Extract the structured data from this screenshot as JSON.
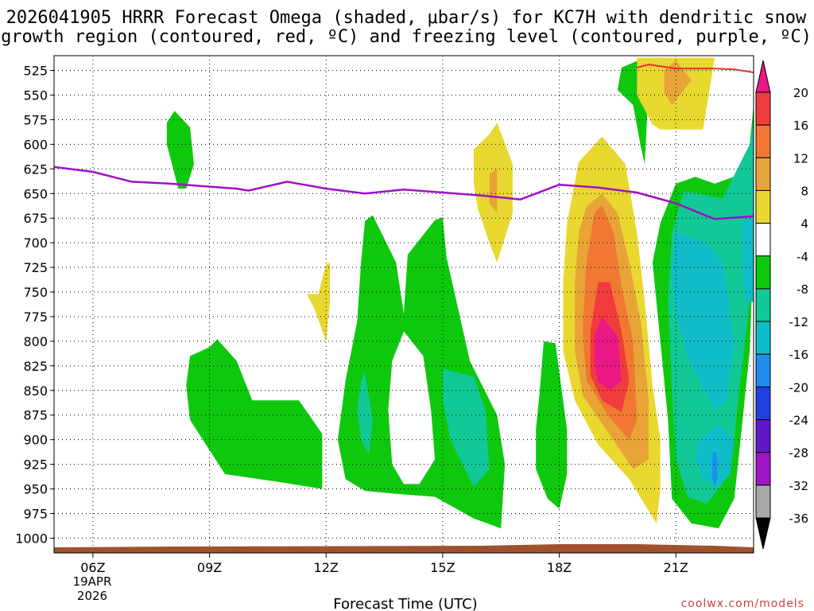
{
  "chart_data": {
    "type": "heatmap",
    "title_line1": "2026041905 HRRR Forecast Omega (shaded, μbar/s) for KC7H with dendritic snow",
    "title_line2": "growth region (contoured, red, ºC) and freezing level (contoured, purple, ºC)",
    "xlabel": "Forecast Time (UTC)",
    "x_ticks": [
      {
        "hour": 6,
        "label": "06Z"
      },
      {
        "hour": 9,
        "label": "09Z"
      },
      {
        "hour": 12,
        "label": "12Z"
      },
      {
        "hour": 15,
        "label": "15Z"
      },
      {
        "hour": 18,
        "label": "18Z"
      },
      {
        "hour": 21,
        "label": "21Z"
      }
    ],
    "x_date_line1": "19APR",
    "x_date_line2": "2026",
    "xlim": [
      5.0,
      23.0
    ],
    "y_ticks": [
      525,
      550,
      575,
      600,
      625,
      650,
      675,
      700,
      725,
      750,
      775,
      800,
      825,
      850,
      875,
      900,
      925,
      950,
      975,
      1000
    ],
    "ylim": [
      1015,
      510
    ],
    "colorbar": {
      "levels": [
        20,
        16,
        12,
        8,
        4,
        -4,
        -8,
        -12,
        -16,
        -20,
        -24,
        -28,
        -32,
        -36
      ],
      "bands": [
        {
          "range": "16 to 20",
          "color": "#f03c3c"
        },
        {
          "range": "12 to 16",
          "color": "#f07832"
        },
        {
          "range": "8 to 12",
          "color": "#e8a437"
        },
        {
          "range": "4 to 8",
          "color": "#e8d830"
        },
        {
          "range": "-4 to 4",
          "color": "#ffffff"
        },
        {
          "range": "-8 to -4",
          "color": "#0ec80e"
        },
        {
          "range": "-12 to -8",
          "color": "#12c896"
        },
        {
          "range": "-16 to -12",
          "color": "#10bcc8"
        },
        {
          "range": "-20 to -16",
          "color": "#1e8cf0"
        },
        {
          "range": "-24 to -20",
          "color": "#2040e0"
        },
        {
          "range": "-28 to -24",
          "color": "#6018c8"
        },
        {
          "range": "-32 to -28",
          "color": "#a014c8"
        },
        {
          "range": "-36 to -32",
          "color": "#a8a8a8"
        }
      ],
      "overflow_high_color": "#ea1884",
      "underflow_low_color": "#000000"
    },
    "freezing_level": {
      "color": "#a010c8",
      "points": [
        [
          5.0,
          623
        ],
        [
          6.0,
          628
        ],
        [
          7.0,
          638
        ],
        [
          8.0,
          640
        ],
        [
          9.0,
          643
        ],
        [
          9.7,
          645
        ],
        [
          10.0,
          647
        ],
        [
          11.0,
          638
        ],
        [
          12.0,
          645
        ],
        [
          13.0,
          650
        ],
        [
          14.0,
          646
        ],
        [
          15.0,
          649
        ],
        [
          16.0,
          652
        ],
        [
          16.5,
          654
        ],
        [
          17.0,
          656
        ],
        [
          18.0,
          641
        ],
        [
          19.0,
          644
        ],
        [
          20.0,
          649
        ],
        [
          21.0,
          660
        ],
        [
          22.0,
          676
        ],
        [
          23.0,
          673
        ]
      ]
    },
    "dgz_contour": {
      "color": "#e83030",
      "points": [
        [
          20.0,
          522
        ],
        [
          20.3,
          519
        ],
        [
          21.0,
          523
        ],
        [
          22.0,
          523
        ],
        [
          22.5,
          524
        ],
        [
          23.0,
          527
        ]
      ]
    },
    "omega_regions": [
      {
        "color": "#0ec80e",
        "pts": [
          [
            7.9,
            578
          ],
          [
            8.1,
            566
          ],
          [
            8.5,
            583
          ],
          [
            8.6,
            620
          ],
          [
            8.4,
            645
          ],
          [
            8.2,
            645
          ],
          [
            7.9,
            600
          ]
        ]
      },
      {
        "color": "#0ec80e",
        "pts": [
          [
            9.0,
            806
          ],
          [
            9.2,
            798
          ],
          [
            9.7,
            820
          ],
          [
            10.1,
            860
          ],
          [
            11.3,
            860
          ],
          [
            11.9,
            894
          ],
          [
            11.9,
            950
          ],
          [
            10.8,
            943
          ],
          [
            9.4,
            935
          ],
          [
            8.5,
            880
          ],
          [
            8.4,
            845
          ],
          [
            8.5,
            815
          ]
        ]
      },
      {
        "color": "#e8d830",
        "pts": [
          [
            11.8,
            752
          ],
          [
            12.0,
            722
          ],
          [
            12.1,
            720
          ],
          [
            12.1,
            760
          ],
          [
            12.0,
            800
          ],
          [
            11.7,
            767
          ],
          [
            11.5,
            752
          ]
        ]
      },
      {
        "color": "#0ec80e",
        "pts": [
          [
            13.0,
            678
          ],
          [
            13.2,
            672
          ],
          [
            13.8,
            720
          ],
          [
            14.0,
            772
          ],
          [
            14.1,
            712
          ],
          [
            14.8,
            677
          ],
          [
            15.0,
            674
          ],
          [
            15.1,
            715
          ],
          [
            15.7,
            820
          ],
          [
            16.4,
            875
          ],
          [
            16.6,
            925
          ],
          [
            16.5,
            990
          ],
          [
            15.8,
            980
          ],
          [
            14.8,
            958
          ],
          [
            13.8,
            955
          ],
          [
            13.0,
            952
          ],
          [
            12.5,
            940
          ],
          [
            12.3,
            900
          ],
          [
            12.5,
            840
          ],
          [
            12.8,
            780
          ],
          [
            12.9,
            720
          ]
        ]
      },
      {
        "color": "#ffffff",
        "pts": [
          [
            14.0,
            790
          ],
          [
            14.5,
            815
          ],
          [
            14.7,
            870
          ],
          [
            14.8,
            920
          ],
          [
            14.4,
            945
          ],
          [
            14.0,
            945
          ],
          [
            13.7,
            925
          ],
          [
            13.6,
            870
          ],
          [
            13.7,
            820
          ]
        ]
      },
      {
        "color": "#12c896",
        "pts": [
          [
            15.0,
            828
          ],
          [
            15.8,
            836
          ],
          [
            16.1,
            870
          ],
          [
            16.2,
            930
          ],
          [
            15.8,
            948
          ],
          [
            15.2,
            900
          ],
          [
            15.0,
            860
          ]
        ]
      },
      {
        "color": "#12c896",
        "pts": [
          [
            12.9,
            840
          ],
          [
            13.0,
            832
          ],
          [
            13.2,
            880
          ],
          [
            13.1,
            915
          ],
          [
            12.9,
            900
          ],
          [
            12.8,
            870
          ]
        ]
      },
      {
        "color": "#e8d830",
        "pts": [
          [
            16.2,
            590
          ],
          [
            16.4,
            578
          ],
          [
            16.8,
            620
          ],
          [
            16.8,
            670
          ],
          [
            16.4,
            720
          ],
          [
            16.2,
            700
          ],
          [
            15.9,
            665
          ],
          [
            15.8,
            640
          ],
          [
            15.8,
            605
          ]
        ]
      },
      {
        "color": "#e8a437",
        "pts": [
          [
            16.2,
            630
          ],
          [
            16.4,
            625
          ],
          [
            16.4,
            670
          ],
          [
            16.2,
            660
          ]
        ]
      },
      {
        "color": "#0ec80e",
        "pts": [
          [
            17.6,
            800
          ],
          [
            17.9,
            802
          ],
          [
            18.2,
            890
          ],
          [
            18.2,
            935
          ],
          [
            18.0,
            970
          ],
          [
            17.7,
            960
          ],
          [
            17.4,
            930
          ],
          [
            17.4,
            890
          ],
          [
            17.5,
            850
          ]
        ]
      },
      {
        "color": "#e8d830",
        "pts": [
          [
            18.5,
            618
          ],
          [
            19.1,
            592
          ],
          [
            19.7,
            620
          ],
          [
            20.0,
            690
          ],
          [
            20.2,
            760
          ],
          [
            20.4,
            845
          ],
          [
            20.6,
            900
          ],
          [
            20.6,
            950
          ],
          [
            20.5,
            985
          ],
          [
            19.8,
            940
          ],
          [
            19.0,
            905
          ],
          [
            18.4,
            860
          ],
          [
            18.1,
            810
          ],
          [
            18.1,
            740
          ],
          [
            18.2,
            680
          ]
        ]
      },
      {
        "color": "#e8a437",
        "pts": [
          [
            18.7,
            663
          ],
          [
            19.1,
            650
          ],
          [
            19.5,
            670
          ],
          [
            19.8,
            720
          ],
          [
            20.1,
            780
          ],
          [
            20.3,
            860
          ],
          [
            20.3,
            920
          ],
          [
            19.9,
            930
          ],
          [
            19.3,
            895
          ],
          [
            18.6,
            855
          ],
          [
            18.4,
            810
          ],
          [
            18.4,
            740
          ],
          [
            18.5,
            690
          ]
        ]
      },
      {
        "color": "#f07832",
        "pts": [
          [
            18.9,
            670
          ],
          [
            19.1,
            662
          ],
          [
            19.4,
            690
          ],
          [
            19.6,
            745
          ],
          [
            19.9,
            800
          ],
          [
            20.0,
            880
          ],
          [
            19.8,
            900
          ],
          [
            19.3,
            878
          ],
          [
            18.7,
            840
          ],
          [
            18.6,
            790
          ],
          [
            18.7,
            720
          ]
        ]
      },
      {
        "color": "#f03c3c",
        "pts": [
          [
            19.0,
            740
          ],
          [
            19.3,
            740
          ],
          [
            19.6,
            790
          ],
          [
            19.8,
            840
          ],
          [
            19.6,
            872
          ],
          [
            19.1,
            860
          ],
          [
            18.8,
            835
          ],
          [
            18.8,
            790
          ]
        ]
      },
      {
        "color": "#ea1884",
        "pts": [
          [
            19.1,
            775
          ],
          [
            19.5,
            795
          ],
          [
            19.6,
            840
          ],
          [
            19.3,
            850
          ],
          [
            19.0,
            842
          ],
          [
            18.9,
            820
          ],
          [
            18.9,
            795
          ]
        ]
      },
      {
        "color": "#0ec80e",
        "pts": [
          [
            19.6,
            522
          ],
          [
            20.2,
            512
          ],
          [
            20.3,
            540
          ],
          [
            20.2,
            620
          ],
          [
            20.1,
            603
          ],
          [
            19.9,
            560
          ],
          [
            19.5,
            545
          ]
        ]
      },
      {
        "color": "#0ec80e",
        "pts": [
          [
            21.0,
            640
          ],
          [
            21.5,
            633
          ],
          [
            22.0,
            640
          ],
          [
            22.7,
            630
          ],
          [
            22.9,
            600
          ],
          [
            23.0,
            560
          ],
          [
            23.0,
            700
          ],
          [
            22.9,
            810
          ],
          [
            22.6,
            925
          ],
          [
            22.5,
            960
          ],
          [
            22.1,
            990
          ],
          [
            21.4,
            985
          ],
          [
            20.9,
            960
          ],
          [
            20.8,
            880
          ],
          [
            20.6,
            800
          ],
          [
            20.4,
            720
          ],
          [
            20.6,
            680
          ]
        ]
      },
      {
        "color": "#e8d830",
        "pts": [
          [
            20.0,
            512
          ],
          [
            22.0,
            512
          ],
          [
            21.7,
            585
          ],
          [
            20.6,
            585
          ],
          [
            20.4,
            580
          ],
          [
            20.0,
            550
          ]
        ]
      },
      {
        "color": "#e8a437",
        "pts": [
          [
            20.7,
            525
          ],
          [
            21.0,
            515
          ],
          [
            21.4,
            535
          ],
          [
            21.2,
            545
          ],
          [
            20.9,
            560
          ],
          [
            20.7,
            548
          ]
        ]
      },
      {
        "color": "#12c896",
        "pts": [
          [
            21.2,
            648
          ],
          [
            21.6,
            650
          ],
          [
            22.2,
            655
          ],
          [
            22.9,
            600
          ],
          [
            23.0,
            580
          ],
          [
            23.0,
            690
          ],
          [
            22.9,
            760
          ],
          [
            22.6,
            860
          ],
          [
            22.5,
            900
          ],
          [
            22.2,
            945
          ],
          [
            21.8,
            965
          ],
          [
            21.3,
            958
          ],
          [
            21.0,
            920
          ],
          [
            20.9,
            850
          ],
          [
            20.8,
            760
          ],
          [
            20.9,
            690
          ]
        ]
      },
      {
        "color": "#10bcc8",
        "pts": [
          [
            21.0,
            690
          ],
          [
            21.8,
            700
          ],
          [
            22.2,
            720
          ],
          [
            22.5,
            800
          ],
          [
            22.3,
            860
          ],
          [
            22.0,
            870
          ],
          [
            21.6,
            840
          ],
          [
            21.3,
            815
          ],
          [
            21.0,
            770
          ],
          [
            20.9,
            730
          ]
        ]
      },
      {
        "color": "#10bcc8",
        "pts": [
          [
            22.7,
            680
          ],
          [
            23.0,
            670
          ],
          [
            23.0,
            760
          ],
          [
            22.8,
            760
          ],
          [
            22.7,
            720
          ]
        ]
      },
      {
        "color": "#10bcc8",
        "pts": [
          [
            21.6,
            900
          ],
          [
            22.1,
            885
          ],
          [
            22.5,
            900
          ],
          [
            22.4,
            935
          ],
          [
            22.1,
            948
          ],
          [
            21.7,
            940
          ],
          [
            21.5,
            920
          ]
        ]
      },
      {
        "color": "#1e8cf0",
        "pts": [
          [
            21.95,
            913
          ],
          [
            22.05,
            913
          ],
          [
            22.07,
            938
          ],
          [
            22.0,
            948
          ],
          [
            21.93,
            938
          ]
        ]
      }
    ],
    "terrain_color": "#a0522d",
    "credit": "coolwx.com/models"
  }
}
